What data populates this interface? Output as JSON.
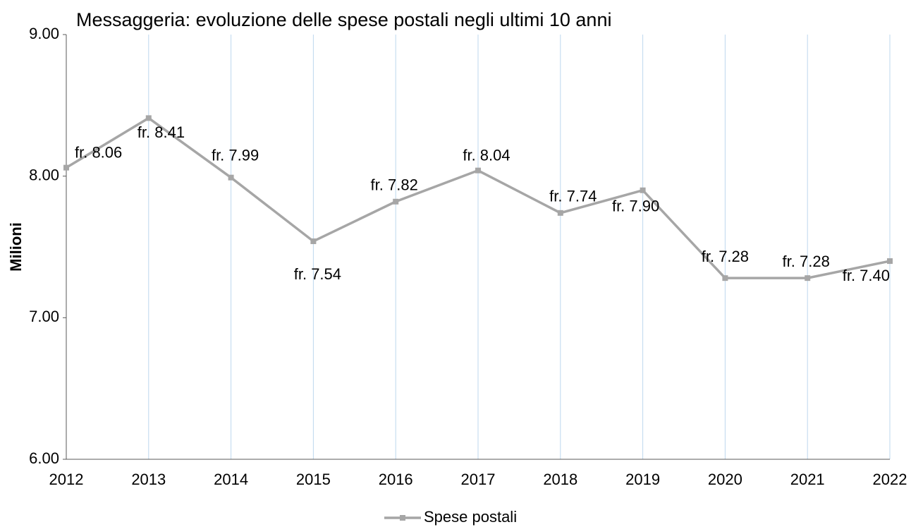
{
  "chart_data": {
    "type": "line",
    "title": "Messaggeria: evoluzione delle spese postali negli ultimi 10 anni",
    "y_label": "Milioni",
    "categories": [
      "2012",
      "2013",
      "2014",
      "2015",
      "2016",
      "2017",
      "2018",
      "2019",
      "2020",
      "2021",
      "2022"
    ],
    "series": [
      {
        "name": "Spese postali",
        "color": "#a6a6a6",
        "values": [
          8.06,
          8.41,
          7.99,
          7.54,
          7.82,
          8.04,
          7.74,
          7.9,
          7.28,
          7.28,
          7.4
        ],
        "value_labels": [
          "fr. 8.06",
          "fr. 8.41",
          "fr. 7.99",
          "fr. 7.54",
          "fr. 7.82",
          "fr. 8.04",
          "fr. 7.74",
          "fr. 7.90",
          "fr. 7.28",
          "fr. 7.28",
          "fr. 7.40"
        ]
      }
    ],
    "ylim": [
      6,
      9
    ],
    "yticks": [
      {
        "value": 6,
        "label": "6.00"
      },
      {
        "value": 7,
        "label": "7.00"
      },
      {
        "value": 8,
        "label": "8.00"
      },
      {
        "value": 9,
        "label": "9.00"
      }
    ],
    "grid": true,
    "legend": "bottom"
  }
}
